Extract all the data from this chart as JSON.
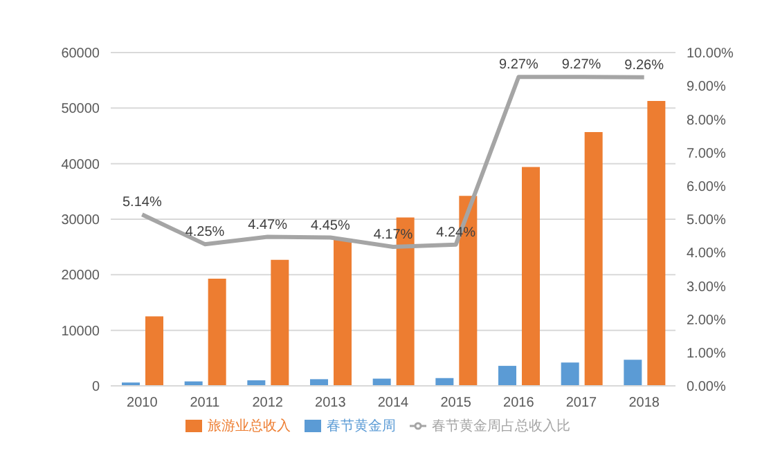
{
  "chart_data": {
    "type": "bar",
    "categories": [
      "2010",
      "2011",
      "2012",
      "2013",
      "2014",
      "2015",
      "2016",
      "2017",
      "2018"
    ],
    "series": [
      {
        "name": "春节黄金周",
        "color": "#5b9bd5",
        "values": [
          600,
          800,
          1000,
          1200,
          1300,
          1400,
          3600,
          4200,
          4700
        ]
      },
      {
        "name": "旅游业总收入",
        "color": "#ed7d31",
        "values": [
          12500,
          19300,
          22700,
          26300,
          30300,
          34200,
          39400,
          45700,
          51300
        ]
      },
      {
        "name": "春节黄金周占总收入比",
        "type": "line",
        "axis": "y2",
        "color": "#a5a5a5",
        "marker": "none",
        "values": [
          5.14,
          4.25,
          4.47,
          4.45,
          4.17,
          4.24,
          9.27,
          9.27,
          9.26
        ],
        "value_labels": [
          "5.14%",
          "4.25%",
          "4.47%",
          "4.45%",
          "4.17%",
          "4.24%",
          "9.27%",
          "9.27%",
          "9.26%"
        ]
      }
    ],
    "ylim": [
      0,
      60000
    ],
    "yticks": [
      0,
      10000,
      20000,
      30000,
      40000,
      50000,
      60000
    ],
    "y2lim": [
      0,
      10
    ],
    "y2ticks": [
      {
        "value": 0,
        "label": "0.00%"
      },
      {
        "value": 1,
        "label": "1.00%"
      },
      {
        "value": 2,
        "label": "2.00%"
      },
      {
        "value": 3,
        "label": "3.00%"
      },
      {
        "value": 4,
        "label": "4.00%"
      },
      {
        "value": 5,
        "label": "5.00%"
      },
      {
        "value": 6,
        "label": "6.00%"
      },
      {
        "value": 7,
        "label": "7.00%"
      },
      {
        "value": 8,
        "label": "8.00%"
      },
      {
        "value": 9,
        "label": "9.00%"
      },
      {
        "value": 10,
        "label": "10.00%"
      }
    ],
    "grid": "y",
    "legend": "bottom"
  }
}
